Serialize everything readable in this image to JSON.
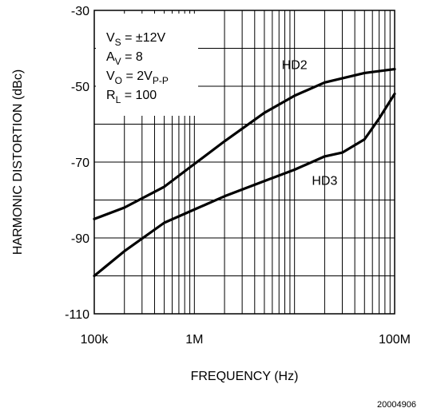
{
  "chart_data": {
    "type": "line",
    "xlabel": "FREQUENCY (Hz)",
    "ylabel": "HARMONIC DISTORTION (dBc)",
    "x_scale": "log",
    "xlim": [
      100000,
      100000000
    ],
    "ylim": [
      -110,
      -30
    ],
    "x_ticks": [
      {
        "value": 100000,
        "label": "100k"
      },
      {
        "value": 1000000,
        "label": "1M"
      },
      {
        "value": 100000000,
        "label": "100M"
      }
    ],
    "y_ticks": [
      {
        "value": -30,
        "label": "-30"
      },
      {
        "value": -50,
        "label": "-50"
      },
      {
        "value": -70,
        "label": "-70"
      },
      {
        "value": -90,
        "label": "-90"
      },
      {
        "value": -110,
        "label": "-110"
      }
    ],
    "grid": true,
    "series": [
      {
        "name": "HD2",
        "x": [
          100000,
          200000,
          500000,
          1000000,
          2000000,
          5000000,
          10000000,
          20000000,
          50000000,
          100000000
        ],
        "y": [
          -85,
          -82,
          -76.5,
          -70.5,
          -64.5,
          -57,
          -52.5,
          -49,
          -46.5,
          -45.5
        ]
      },
      {
        "name": "HD3",
        "x": [
          100000,
          200000,
          500000,
          1000000,
          2000000,
          5000000,
          10000000,
          20000000,
          30000000,
          50000000,
          70000000,
          100000000
        ],
        "y": [
          -100,
          -93.5,
          -86,
          -82.5,
          -79,
          -75,
          -72,
          -68.5,
          -67.5,
          -64,
          -58.5,
          -52
        ]
      }
    ],
    "annotations": [
      {
        "main": "V",
        "sub": "S",
        "rest": " = ±12V"
      },
      {
        "main": "A",
        "sub": "V",
        "rest": " = 8"
      },
      {
        "main": "V",
        "sub": "O",
        "rest": " = 2V",
        "sub2": "P-P"
      },
      {
        "main": "R",
        "sub": "L",
        "rest": " = 100"
      }
    ]
  },
  "figure_id": "20004906"
}
